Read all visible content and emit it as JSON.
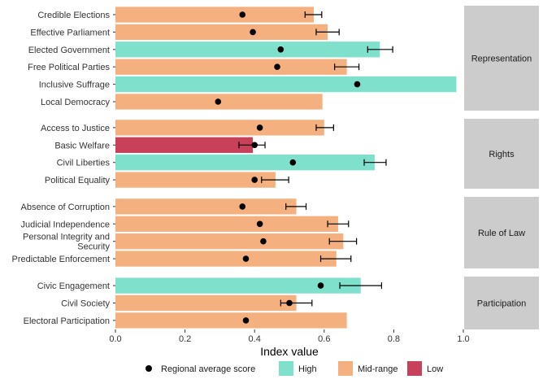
{
  "chart_data": {
    "type": "bar",
    "xlabel": "Index value",
    "xlim": [
      0,
      1
    ],
    "xticks": [
      "0.0",
      "0.2",
      "0.4",
      "0.6",
      "0.8",
      "1.0"
    ],
    "grid": false,
    "legend_position": "bottom",
    "legend": {
      "items": [
        {
          "key": "avg",
          "label": "Regional average score",
          "shape": "point"
        },
        {
          "key": "High",
          "label": "High",
          "color": "#7FE0CC"
        },
        {
          "key": "Mid-range",
          "label": "Mid-range",
          "color": "#F4B07F"
        },
        {
          "key": "Low",
          "label": "Low",
          "color": "#C8405A"
        }
      ]
    },
    "colors": {
      "High": "#7FE0CC",
      "Mid-range": "#F4B07F",
      "Low": "#C8405A",
      "strip": "#CCCCCC"
    },
    "facets": [
      {
        "name": "Representation",
        "rows": [
          {
            "label": "Credible Elections",
            "value": 0.57,
            "category": "Mid-range",
            "average": 0.365,
            "ci": [
              0.545,
              0.593
            ]
          },
          {
            "label": "Effective Parliament",
            "value": 0.61,
            "category": "Mid-range",
            "average": 0.395,
            "ci": [
              0.577,
              0.643
            ]
          },
          {
            "label": "Elected Government",
            "value": 0.76,
            "category": "High",
            "average": 0.475,
            "ci": [
              0.725,
              0.797
            ]
          },
          {
            "label": "Free Political Parties",
            "value": 0.665,
            "category": "Mid-range",
            "average": 0.465,
            "ci": [
              0.63,
              0.7
            ]
          },
          {
            "label": "Inclusive Suffrage",
            "value": 0.98,
            "category": "High",
            "average": 0.695,
            "ci": null
          },
          {
            "label": "Local Democracy",
            "value": 0.595,
            "category": "Mid-range",
            "average": 0.295,
            "ci": null
          }
        ]
      },
      {
        "name": "Rights",
        "rows": [
          {
            "label": "Access to Justice",
            "value": 0.6,
            "category": "Mid-range",
            "average": 0.415,
            "ci": [
              0.577,
              0.627
            ]
          },
          {
            "label": "Basic Welfare",
            "value": 0.395,
            "category": "Low",
            "average": 0.4,
            "ci": [
              0.355,
              0.43
            ]
          },
          {
            "label": "Civil Liberties",
            "value": 0.745,
            "category": "High",
            "average": 0.51,
            "ci": [
              0.715,
              0.778
            ]
          },
          {
            "label": "Political Equality",
            "value": 0.46,
            "category": "Mid-range",
            "average": 0.4,
            "ci": [
              0.42,
              0.498
            ]
          }
        ]
      },
      {
        "name": "Rule of Law",
        "rows": [
          {
            "label": "Absence of Corruption",
            "value": 0.52,
            "category": "Mid-range",
            "average": 0.365,
            "ci": [
              0.49,
              0.548
            ]
          },
          {
            "label": "Judicial Independence",
            "value": 0.64,
            "category": "Mid-range",
            "average": 0.415,
            "ci": [
              0.61,
              0.67
            ]
          },
          {
            "label": "Personal Integrity and Security",
            "label_lines": [
              "Personal Integrity and",
              "Security"
            ],
            "value": 0.655,
            "category": "Mid-range",
            "average": 0.425,
            "ci": [
              0.615,
              0.693
            ]
          },
          {
            "label": "Predictable Enforcement",
            "value": 0.635,
            "category": "Mid-range",
            "average": 0.375,
            "ci": [
              0.59,
              0.677
            ]
          }
        ]
      },
      {
        "name": "Participation",
        "rows": [
          {
            "label": "Civic Engagement",
            "value": 0.705,
            "category": "High",
            "average": 0.59,
            "ci": [
              0.645,
              0.765
            ]
          },
          {
            "label": "Civil Society",
            "value": 0.52,
            "category": "Mid-range",
            "average": 0.5,
            "ci": [
              0.475,
              0.565
            ]
          },
          {
            "label": "Electoral Participation",
            "value": 0.665,
            "category": "Mid-range",
            "average": 0.375,
            "ci": null
          }
        ]
      }
    ]
  }
}
